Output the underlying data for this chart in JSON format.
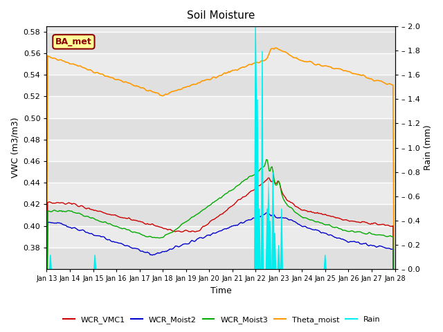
{
  "title": "Soil Moisture",
  "xlabel": "Time",
  "ylabel_left": "VWC (m3/m3)",
  "ylabel_right": "Rain (mm)",
  "ylim_left": [
    0.36,
    0.585
  ],
  "ylim_right": [
    0.0,
    2.0
  ],
  "yticks_left": [
    0.38,
    0.4,
    0.42,
    0.44,
    0.46,
    0.48,
    0.5,
    0.52,
    0.54,
    0.56,
    0.58
  ],
  "yticks_right": [
    0.0,
    0.2,
    0.4,
    0.6,
    0.8,
    1.0,
    1.2,
    1.4,
    1.6,
    1.8,
    2.0
  ],
  "annotation_box_text": "BA_met",
  "annotation_box_color": "#8b0000",
  "annotation_box_bg": "#ffff99",
  "background_color": "#e8e8e8",
  "colors": {
    "WCR_VMC1": "#cc0000",
    "WCR_Moist2": "#0000cc",
    "WCR_Moist3": "#00aa00",
    "Theta_moist": "#ff9900",
    "Rain": "#00eeee"
  },
  "legend_labels": [
    "WCR_VMC1",
    "WCR_Moist2",
    "WCR_Moist3",
    "Theta_moist",
    "Rain"
  ]
}
